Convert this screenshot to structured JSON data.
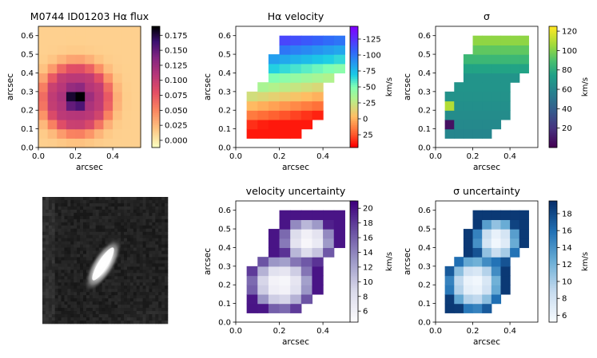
{
  "figure": {
    "title_prefix": "M0744 ID01203"
  },
  "panels": {
    "flux": {
      "title": "M0744 ID01203 Hα flux",
      "xlabel": "arcsec",
      "ylabel": "arcsec",
      "cbar_label": ""
    },
    "vel": {
      "title": "Hα velocity",
      "xlabel": "arcsec",
      "ylabel": "arcsec",
      "cbar_label": "km/s"
    },
    "sig": {
      "title": "σ",
      "xlabel": "arcsec",
      "ylabel": "arcsec",
      "cbar_label": "km/s"
    },
    "image": {
      "title": ""
    },
    "evel": {
      "title": "velocity uncertainty",
      "xlabel": "arcsec",
      "ylabel": "arcsec",
      "cbar_label": "km/s"
    },
    "esig": {
      "title": "σ uncertainty",
      "xlabel": "arcsec",
      "ylabel": "arcsec",
      "cbar_label": "km/s"
    }
  },
  "chart_data": [
    {
      "id": "flux",
      "type": "heatmap",
      "title": "M0744 ID01203 Hα flux",
      "xlabel": "arcsec",
      "ylabel": "arcsec",
      "xlim": [
        0,
        0.55
      ],
      "ylim": [
        0,
        0.65
      ],
      "xticks": [
        "0.0",
        "0.2",
        "0.4"
      ],
      "yticks": [
        "0.0",
        "0.1",
        "0.2",
        "0.3",
        "0.4",
        "0.5",
        "0.6"
      ],
      "grid_shape": [
        13,
        11
      ],
      "colormap": "magma_r",
      "clim": [
        -0.012,
        0.19
      ],
      "cbar_ticks": [
        "0.000",
        "0.025",
        "0.050",
        "0.075",
        "0.100",
        "0.125",
        "0.150",
        "0.175"
      ],
      "description": "Full field shows a compact peak of ~0.19 near (0.2, 0.27) arcsec inside a fainter ring (~0.1) of radius ~0.15 arcsec; background near 0.01–0.03."
    },
    {
      "id": "vel",
      "type": "heatmap",
      "title": "Hα velocity",
      "cbar_label": "km/s",
      "xlabel": "arcsec",
      "ylabel": "arcsec",
      "xlim": [
        0,
        0.55
      ],
      "ylim": [
        0,
        0.65
      ],
      "xticks": [
        "0.0",
        "0.2",
        "0.4"
      ],
      "yticks": [
        "0.0",
        "0.1",
        "0.2",
        "0.3",
        "0.4",
        "0.5",
        "0.6"
      ],
      "colormap": "rainbow",
      "clim": [
        -145,
        45
      ],
      "cbar_ticks": [
        "25",
        "0",
        "-25",
        "-50",
        "-75",
        "-100",
        "-125"
      ],
      "description": "Gradient from ~-140 km/s at top (0.15, 0.55) to ~+40 km/s at bottom-left (0.05, 0.15)."
    },
    {
      "id": "sig",
      "type": "heatmap",
      "title": "σ",
      "cbar_label": "km/s",
      "xlabel": "arcsec",
      "ylabel": "arcsec",
      "xlim": [
        0,
        0.55
      ],
      "ylim": [
        0,
        0.65
      ],
      "xticks": [
        "0.0",
        "0.2",
        "0.4"
      ],
      "yticks": [
        "0.0",
        "0.1",
        "0.2",
        "0.3",
        "0.4",
        "0.5",
        "0.6"
      ],
      "colormap": "viridis",
      "clim": [
        0,
        125
      ],
      "cbar_ticks": [
        "20",
        "40",
        "60",
        "80",
        "100",
        "120"
      ],
      "description": "Mostly 60–80 km/s; highest ~120 km/s at top (0.35, 0.6); isolated high pixel ~110 at left (0.08, 0.23); low ~5 at (0.08, 0.13)."
    },
    {
      "id": "image",
      "type": "image",
      "description": "Grayscale broadband image, elongated bright source tilted ~60° at center."
    },
    {
      "id": "evel",
      "type": "heatmap",
      "title": "velocity uncertainty",
      "cbar_label": "km/s",
      "xlabel": "arcsec",
      "ylabel": "arcsec",
      "xlim": [
        0,
        0.55
      ],
      "ylim": [
        0,
        0.65
      ],
      "xticks": [
        "0.0",
        "0.2",
        "0.4"
      ],
      "yticks": [
        "0.0",
        "0.1",
        "0.2",
        "0.3",
        "0.4",
        "0.5",
        "0.6"
      ],
      "colormap": "Purples",
      "clim": [
        4.5,
        21
      ],
      "cbar_ticks": [
        "6",
        "8",
        "10",
        "12",
        "14",
        "16",
        "18",
        "20"
      ],
      "description": "Low (~5 km/s) at the two bright centres, rising to ~20 km/s at the edges."
    },
    {
      "id": "esig",
      "type": "heatmap",
      "title": "σ uncertainty",
      "cbar_label": "km/s",
      "xlabel": "arcsec",
      "ylabel": "arcsec",
      "xlim": [
        0,
        0.55
      ],
      "ylim": [
        0,
        0.65
      ],
      "xticks": [
        "0.0",
        "0.2",
        "0.4"
      ],
      "yticks": [
        "0.0",
        "0.1",
        "0.2",
        "0.3",
        "0.4",
        "0.5",
        "0.6"
      ],
      "colormap": "Blues",
      "clim": [
        5.2,
        19.5
      ],
      "cbar_ticks": [
        "6",
        "8",
        "10",
        "12",
        "14",
        "16",
        "18"
      ],
      "description": "Low (~6 km/s) in the centres, rising to ~19 km/s at the edges."
    }
  ]
}
